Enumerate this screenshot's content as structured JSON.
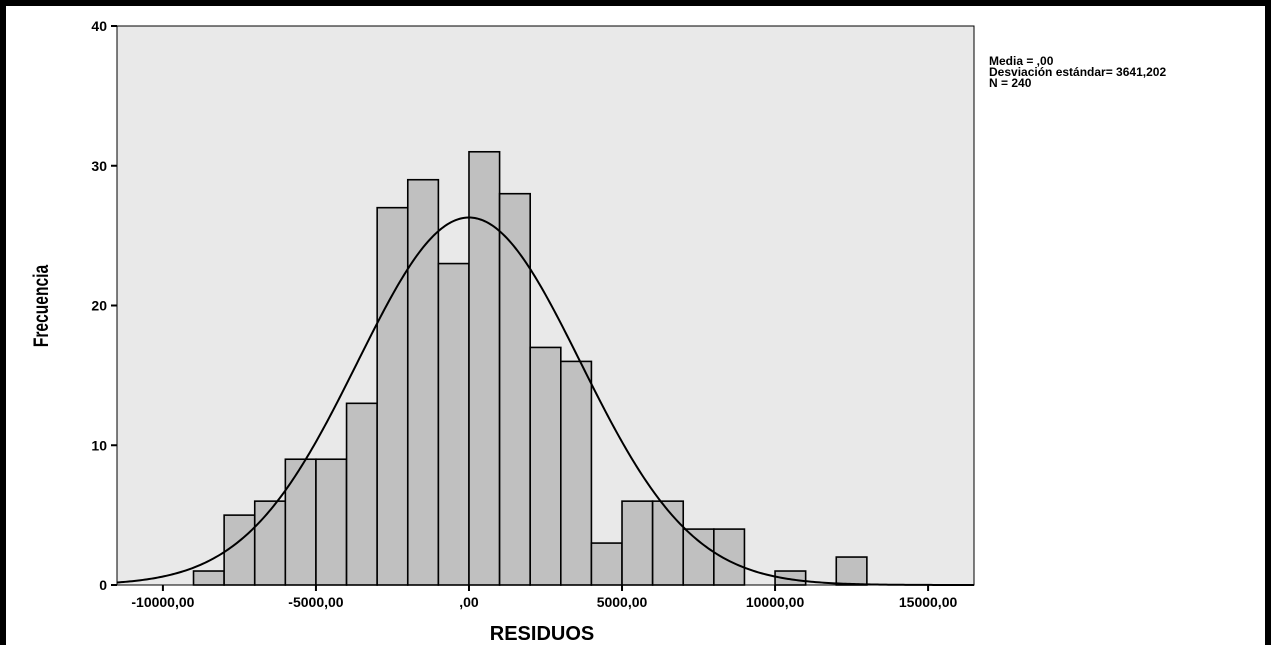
{
  "chart_data": {
    "type": "bar",
    "subtype": "histogram",
    "xlabel": "RESIDUOS",
    "ylabel": "Frecuencia",
    "xlim": [
      -11500,
      16500
    ],
    "ylim": [
      0,
      40
    ],
    "x_ticks": [
      -10000,
      -5000,
      0,
      5000,
      10000,
      15000
    ],
    "x_tick_labels": [
      "-10000,00",
      "-5000,00",
      ",00",
      "5000,00",
      "10000,00",
      "15000,00"
    ],
    "y_ticks": [
      0,
      10,
      20,
      30,
      40
    ],
    "y_tick_labels": [
      "0",
      "10",
      "20",
      "30",
      "40"
    ],
    "bin_width": 1000,
    "bins": [
      {
        "x0": -9000,
        "x1": -8000,
        "count": 1
      },
      {
        "x0": -8000,
        "x1": -7000,
        "count": 5
      },
      {
        "x0": -7000,
        "x1": -6000,
        "count": 6
      },
      {
        "x0": -6000,
        "x1": -5000,
        "count": 9
      },
      {
        "x0": -5000,
        "x1": -4000,
        "count": 9
      },
      {
        "x0": -4000,
        "x1": -3000,
        "count": 13
      },
      {
        "x0": -3000,
        "x1": -2000,
        "count": 27
      },
      {
        "x0": -2000,
        "x1": -1000,
        "count": 29
      },
      {
        "x0": -1000,
        "x1": 0,
        "count": 23
      },
      {
        "x0": 0,
        "x1": 1000,
        "count": 31
      },
      {
        "x0": 1000,
        "x1": 2000,
        "count": 28
      },
      {
        "x0": 2000,
        "x1": 3000,
        "count": 17
      },
      {
        "x0": 3000,
        "x1": 4000,
        "count": 16
      },
      {
        "x0": 4000,
        "x1": 5000,
        "count": 3
      },
      {
        "x0": 5000,
        "x1": 6000,
        "count": 6
      },
      {
        "x0": 6000,
        "x1": 7000,
        "count": 6
      },
      {
        "x0": 7000,
        "x1": 8000,
        "count": 4
      },
      {
        "x0": 8000,
        "x1": 9000,
        "count": 4
      },
      {
        "x0": 10000,
        "x1": 11000,
        "count": 1
      },
      {
        "x0": 12000,
        "x1": 13000,
        "count": 2
      }
    ],
    "normal_curve": {
      "mean": 0,
      "std": 3641.202,
      "n": 240
    },
    "grid": false,
    "colors": {
      "plot_bg": "#e9e9e9",
      "bar_fill": "#c0c0c0",
      "bar_stroke": "#000000",
      "curve": "#000000"
    }
  },
  "stats": {
    "mean_label": "Media = ,00",
    "std_label": "Desviación estándar= 3641,202",
    "n_label": "N = 240"
  }
}
